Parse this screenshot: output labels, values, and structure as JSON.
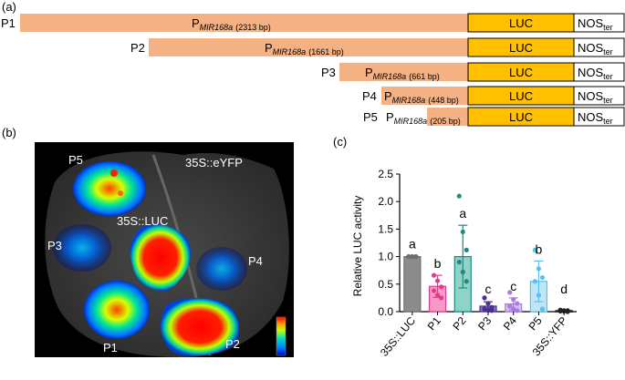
{
  "panel_a": {
    "label": "(a)",
    "constructs": [
      {
        "name": "P1",
        "promoter": "P",
        "promoter_sub": "MIR168a",
        "size": "(2313 bp)",
        "luc": "LUC",
        "nos": "NOS",
        "nos_sub": "ter"
      },
      {
        "name": "P2",
        "promoter": "P",
        "promoter_sub": "MIR168a",
        "size": "(1661 bp)",
        "luc": "LUC",
        "nos": "NOS",
        "nos_sub": "ter"
      },
      {
        "name": "P3",
        "promoter": "P",
        "promoter_sub": "MIR168a",
        "size": "(661 bp)",
        "luc": "LUC",
        "nos": "NOS",
        "nos_sub": "ter"
      },
      {
        "name": "P4",
        "promoter": "P",
        "promoter_sub": "MIR168a",
        "size": "(448 bp)",
        "luc": "LUC",
        "nos": "NOS",
        "nos_sub": "ter"
      },
      {
        "name": "P5",
        "promoter": "P",
        "promoter_sub": "MIR168a",
        "size": "(205 bp)",
        "luc": "LUC",
        "nos": "NOS",
        "nos_sub": "ter"
      }
    ],
    "colors": {
      "promoter": "#f4b183",
      "luc": "#ffc000",
      "nos": "#ffffff"
    }
  },
  "panel_b": {
    "label": "(b)",
    "labels": {
      "p1": "P1",
      "p2": "P2",
      "p3": "P3",
      "p4": "P4",
      "p5": "P5",
      "luc": "35S::LUC",
      "eyfp": "35S::eYFP"
    }
  },
  "panel_c": {
    "label": "(c)",
    "chart_data": {
      "type": "bar",
      "ylabel": "Relative LUC activity",
      "ylim": [
        0,
        2.5
      ],
      "yticks": [
        "0.0",
        "0.5",
        "1.0",
        "1.5",
        "2.0",
        "2.5"
      ],
      "categories": [
        "35S::LUC",
        "P1",
        "P2",
        "P3",
        "P4",
        "P5",
        "35S::YFP"
      ],
      "values": [
        1.0,
        0.46,
        1.0,
        0.1,
        0.14,
        0.55,
        0.02
      ],
      "errors": [
        0.02,
        0.2,
        0.57,
        0.08,
        0.11,
        0.37,
        0.01
      ],
      "letters": [
        "a",
        "b",
        "a",
        "c",
        "c",
        "b",
        "d"
      ],
      "colors": [
        "#6e6e6e",
        "#e6398e",
        "#1f8a7f",
        "#4b2f8f",
        "#a97be0",
        "#5bc0eb",
        "#222222"
      ],
      "fills": [
        "#8c8c8c",
        "#f59bc6",
        "#8fd3c8",
        "#8a78c6",
        "#d6c0f2",
        "#bfe6f6",
        "#555555"
      ],
      "points": [
        [
          1.0,
          1.0,
          1.0,
          1.0,
          1.0,
          1.0
        ],
        [
          0.66,
          0.56,
          0.45,
          0.38,
          0.3,
          0.25
        ],
        [
          2.1,
          1.45,
          1.12,
          0.9,
          0.72,
          0.55
        ],
        [
          0.25,
          0.15,
          0.08,
          0.05,
          0.03,
          0.02
        ],
        [
          0.35,
          0.22,
          0.15,
          0.1,
          0.05,
          0.02
        ],
        [
          1.12,
          0.78,
          0.62,
          0.55,
          0.3,
          0.05
        ],
        [
          0.03,
          0.02,
          0.02,
          0.01,
          0.01,
          0.0
        ]
      ]
    }
  }
}
